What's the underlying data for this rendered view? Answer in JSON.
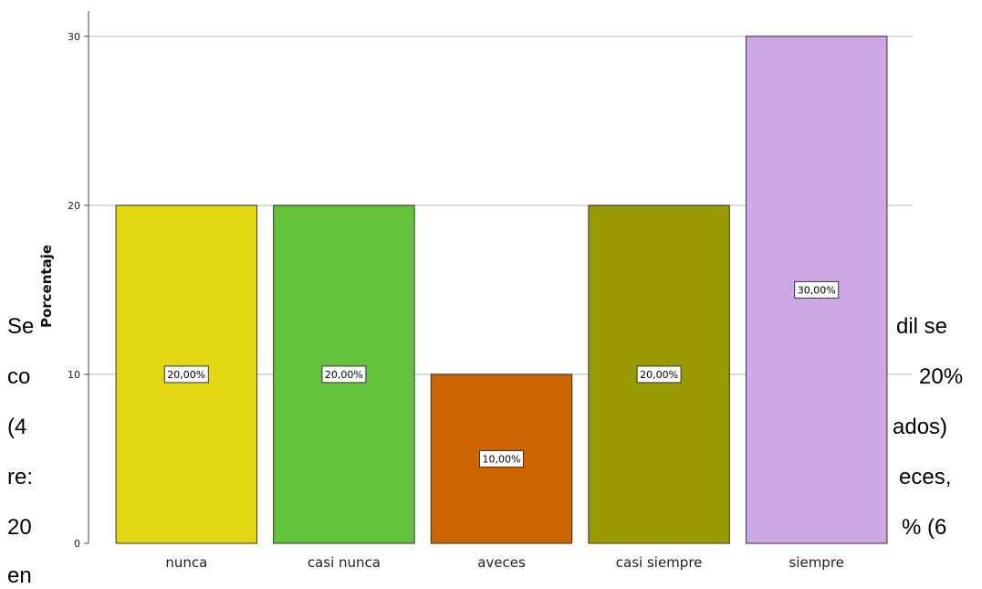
{
  "doc_fragments": {
    "left": [
      "Se",
      "co",
      "(4",
      "re:",
      "20",
      "en"
    ],
    "right": [
      "dil se",
      "20%",
      "ados)",
      "eces,",
      "%  (6"
    ]
  },
  "chart_data": {
    "type": "bar",
    "title": "",
    "xlabel": "",
    "ylabel": "Porcentaje",
    "categories": [
      "nunca",
      "casi nunca",
      "aveces",
      "casi siempre",
      "siempre"
    ],
    "values": [
      20,
      20,
      10,
      20,
      30
    ],
    "data_labels": [
      "20,00%",
      "20,00%",
      "10,00%",
      "20,00%",
      "30,00%"
    ],
    "colors": [
      "#e2d610",
      "#63c33b",
      "#cc6400",
      "#999900",
      "#cda8e5"
    ],
    "yticks": [
      0,
      10,
      20,
      30
    ],
    "ylim": [
      0,
      31.5
    ],
    "grid": true,
    "legend": false
  }
}
